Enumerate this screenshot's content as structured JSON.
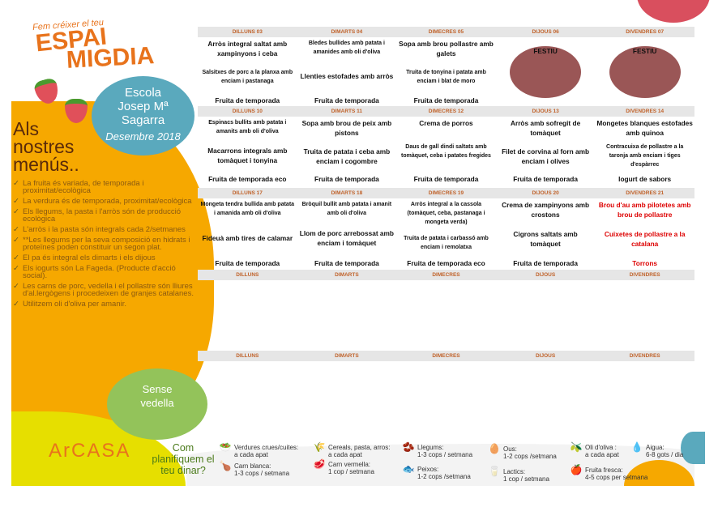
{
  "brand": {
    "tagline": "Fem créixer el teu",
    "logo_line1": "ESPAI",
    "logo_line2": "MIGDIA",
    "company": "ArCASA"
  },
  "school": {
    "line1": "Escola",
    "line2": "Josep Mª",
    "line3": "Sagarra",
    "month": "Desembre 2018"
  },
  "notes_title": [
    "Als",
    "nostres",
    "menús.."
  ],
  "notes": [
    "La fruita és variada, de temporada i proximitat/ecològica",
    "La verdura és de temporada, proximitat/ecològica",
    "Els llegums, la pasta i l'arròs són de producció ecològica",
    "L'arròs i la pasta són integrals cada 2/setmanes",
    "**Les llegums per la seva composició en hidrats i proteïnes poden constituir un segon plat.",
    "El pa és integral els dimarts i els dijous",
    "Els iogurts són La Fageda. (Producte d'acció social).",
    "Les carns de porc, vedella i el pollastre són lliures d'al.lergògens i procedeixen de granjes catalanes.",
    "Utilitzem oli d'oliva per amanir."
  ],
  "badge_no_beef": {
    "line1": "Sense",
    "line2": "vedella"
  },
  "plan_title": [
    "Com",
    "planifiquem el",
    "teu dinar?"
  ],
  "legend": [
    {
      "icon": "vegetables-icon",
      "label": "Verdures crues/cuites:",
      "freq": "a cada apat"
    },
    {
      "icon": "cereals-icon",
      "label": "Cereals, pasta, arros:",
      "freq": "a cada apat"
    },
    {
      "icon": "legumes-icon",
      "label": "Llegums:",
      "freq": "1-3 cops /  setmana"
    },
    {
      "icon": "egg-icon",
      "label": "Ous:",
      "freq": "1-2 cops /setmana"
    },
    {
      "icon": "olive-oil-icon",
      "label": "Oli d'oliva :",
      "freq": "a cada apat"
    },
    {
      "icon": "water-icon",
      "label": "Aigua:",
      "freq": "6-8 gots / dia"
    },
    {
      "icon": "chicken-icon",
      "label": "Carn blanca:",
      "freq": "1-3 cops / setmana"
    },
    {
      "icon": "red-meat-icon",
      "label": "Carn vermella:",
      "freq": "1 cop / setmana"
    },
    {
      "icon": "fish-icon",
      "label": "Peixos:",
      "freq": "1-2 cops /setmana"
    },
    {
      "icon": "dairy-icon",
      "label": "Lactics:",
      "freq": "1 cop / setmana"
    },
    {
      "icon": "fruit-icon",
      "label": "Fruita fresca:",
      "freq": "4-5 cops per setmana"
    }
  ],
  "colors": {
    "orange": "#f6a800",
    "teal": "#5aa9bd",
    "green": "#93c35a",
    "festiu": "#9a5656",
    "header_text": "#c0622a",
    "special_menu": "#dd0000"
  },
  "weeks": [
    {
      "headers": [
        "DILLUNS 03",
        "DIMARTS 04",
        "DIMECRES 05",
        "DIJOUS 06",
        "DIVENDRES 07"
      ],
      "days": [
        {
          "dishes": [
            "Arròs integral saltat amb xampinyons i ceba",
            "Salsitxes de porc a la planxa amb enciam i pastanaga",
            "Fruita de temporada"
          ]
        },
        {
          "dishes": [
            "Bledes bullides amb patata i amanides amb oli d'oliva",
            "Llenties estofades amb arròs",
            "Fruita de temporada"
          ]
        },
        {
          "dishes": [
            "Sopa amb brou pollastre amb galets",
            "Truita de tonyina i patata amb enciam i blat de moro",
            "Fruita de temporada"
          ]
        },
        {
          "festiu": "FESTIU"
        },
        {
          "festiu": "FESTIU"
        }
      ]
    },
    {
      "headers": [
        "DILLUNS 10",
        "DIMARTS 11",
        "DIMECRES 12",
        "DIJOUS 13",
        "DIVENDRES 14"
      ],
      "days": [
        {
          "dishes": [
            "Espinacs bullits amb patata i amanits amb oli d'oliva",
            "Macarrons integrals amb tomàquet i tonyina",
            "Fruita de temporada eco"
          ]
        },
        {
          "dishes": [
            "Sopa amb brou de peix amb pistons",
            "Truita de patata i ceba amb enciam i cogombre",
            "Fruita de temporada"
          ]
        },
        {
          "dishes": [
            "Crema de porros",
            "Daus de gall dindi saltats amb tomàquet, ceba i patates fregides",
            "Fruita de temporada"
          ]
        },
        {
          "dishes": [
            "Arròs amb sofregit de tomàquet",
            "Filet de corvina al forn amb enciam i olives",
            "Fruita de temporada"
          ]
        },
        {
          "dishes": [
            "Mongetes blanques estofades amb quinoa",
            "Contracuixa de pollastre a la taronja amb enciam i tiges d'espàrrec",
            "Iogurt de sabors"
          ]
        }
      ]
    },
    {
      "headers": [
        "DILLUNS 17",
        "DIMARTS 18",
        "DIMECRES 19",
        "DIJOUS 20",
        "DIVENDRES 21"
      ],
      "days": [
        {
          "dishes": [
            "Mongeta tendra bullida amb patata i amanida amb oli d'oliva",
            "Fideuà amb tires de calamar",
            "Fruita de temporada"
          ]
        },
        {
          "dishes": [
            "Bròquil bullit amb patata i amanit amb oli d'oliva",
            "Llom de porc arrebossat amb enciam i tomàquet",
            "Fruita de temporada"
          ]
        },
        {
          "dishes": [
            "Arròs integral a la cassola (tomàquet, ceba, pastanaga i mongeta verda)",
            "Truita de patata i carbassó amb enciam i remolatxa",
            "Fruita de temporada eco"
          ]
        },
        {
          "dishes": [
            "Crema de xampinyons amb crostons",
            "Cigrons saltats amb tomàquet",
            "Fruita de temporada"
          ]
        },
        {
          "dishes": [
            "Brou d'au amb pilotetes amb brou de pollastre",
            "Cuixetes de pollastre a la catalana",
            "Torrons"
          ],
          "special": true
        }
      ]
    },
    {
      "headers": [
        "DILLUNS",
        "DIMARTS",
        "DIMECRES",
        "DIJOUS",
        "DIVENDRES"
      ]
    },
    {
      "headers": [
        "DILLUNS",
        "DIMARTS",
        "DIMECRES",
        "DIJOUS",
        "DIVENDRES"
      ]
    }
  ]
}
